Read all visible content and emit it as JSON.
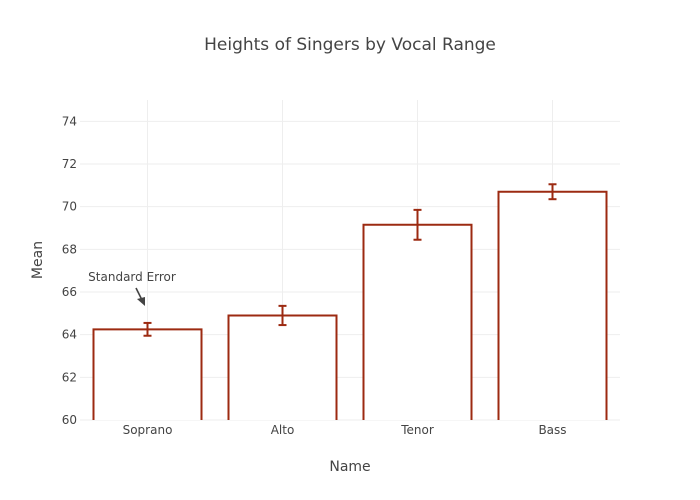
{
  "chart_data": {
    "type": "bar",
    "title": "Heights of Singers by Vocal Range",
    "xlabel": "Name",
    "ylabel": "Mean",
    "categories": [
      "Soprano",
      "Alto",
      "Tenor",
      "Bass"
    ],
    "series": [
      {
        "values": [
          64.25,
          64.9,
          69.15,
          70.7
        ],
        "error": [
          0.3,
          0.45,
          0.7,
          0.35
        ]
      }
    ],
    "ylim": [
      60,
      75
    ],
    "yticks": [
      "60",
      "62",
      "64",
      "66",
      "68",
      "70",
      "72",
      "74"
    ],
    "grid": true,
    "bar_fill": "#ffffff",
    "bar_color": "#9c2a11",
    "annotation": {
      "text": "Standard Error",
      "category": "Soprano"
    }
  }
}
